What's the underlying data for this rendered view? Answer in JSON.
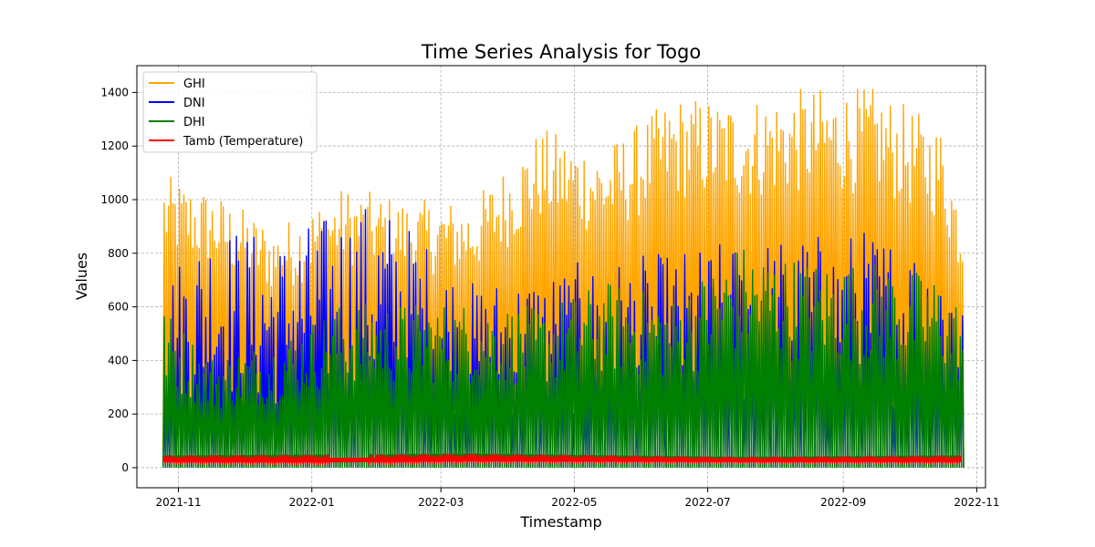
{
  "chart_data": {
    "type": "line",
    "title": "Time Series Analysis for Togo",
    "xlabel": "Timestamp",
    "ylabel": "Values",
    "x_tick_labels": [
      "2021-11",
      "2022-01",
      "2022-03",
      "2022-05",
      "2022-07",
      "2022-09",
      "2022-11"
    ],
    "xlim": [
      "2021-10-13",
      "2022-11-05"
    ],
    "data_range": [
      "2021-10-25",
      "2022-10-25"
    ],
    "ylim": [
      -75,
      1500
    ],
    "y_ticks": [
      0,
      200,
      400,
      600,
      800,
      1000,
      1200,
      1400
    ],
    "grid": true,
    "legend_position": "top-left",
    "series": [
      {
        "name": "GHI",
        "color": "#FFA500",
        "approx_daily_peak": [
          {
            "x": "2021-10-25",
            "y": 1095
          },
          {
            "x": "2021-11-15",
            "y": 1040
          },
          {
            "x": "2021-12-15",
            "y": 900
          },
          {
            "x": "2022-01-15",
            "y": 1050
          },
          {
            "x": "2022-02-15",
            "y": 1000
          },
          {
            "x": "2022-03-15",
            "y": 1000
          },
          {
            "x": "2022-04-15",
            "y": 1270
          },
          {
            "x": "2022-05-15",
            "y": 1200
          },
          {
            "x": "2022-06-15",
            "y": 1390
          },
          {
            "x": "2022-07-15",
            "y": 1380
          },
          {
            "x": "2022-08-15",
            "y": 1420
          },
          {
            "x": "2022-09-15",
            "y": 1420
          },
          {
            "x": "2022-10-15",
            "y": 1280
          },
          {
            "x": "2022-10-25",
            "y": 970
          }
        ]
      },
      {
        "name": "DNI",
        "color": "#0000FF",
        "approx_daily_peak": [
          {
            "x": "2021-10-25",
            "y": 730
          },
          {
            "x": "2021-11-15",
            "y": 940
          },
          {
            "x": "2021-12-15",
            "y": 860
          },
          {
            "x": "2022-01-15",
            "y": 980
          },
          {
            "x": "2022-02-01",
            "y": 1005
          },
          {
            "x": "2022-03-15",
            "y": 700
          },
          {
            "x": "2022-04-15",
            "y": 750
          },
          {
            "x": "2022-05-15",
            "y": 780
          },
          {
            "x": "2022-06-15",
            "y": 810
          },
          {
            "x": "2022-07-15",
            "y": 860
          },
          {
            "x": "2022-08-15",
            "y": 880
          },
          {
            "x": "2022-09-15",
            "y": 900
          },
          {
            "x": "2022-10-15",
            "y": 840
          },
          {
            "x": "2022-10-25",
            "y": 820
          }
        ]
      },
      {
        "name": "DHI",
        "color": "#008000",
        "approx_daily_peak": [
          {
            "x": "2021-10-25",
            "y": 600
          },
          {
            "x": "2021-11-15",
            "y": 420
          },
          {
            "x": "2021-12-15",
            "y": 480
          },
          {
            "x": "2022-01-15",
            "y": 620
          },
          {
            "x": "2022-02-15",
            "y": 620
          },
          {
            "x": "2022-03-15",
            "y": 620
          },
          {
            "x": "2022-04-15",
            "y": 600
          },
          {
            "x": "2022-05-15",
            "y": 700
          },
          {
            "x": "2022-06-15",
            "y": 640
          },
          {
            "x": "2022-07-15",
            "y": 840
          },
          {
            "x": "2022-08-15",
            "y": 780
          },
          {
            "x": "2022-09-15",
            "y": 770
          },
          {
            "x": "2022-10-15",
            "y": 720
          },
          {
            "x": "2022-10-25",
            "y": 600
          }
        ]
      },
      {
        "name": "Tamb (Temperature)",
        "color": "#FF0000",
        "approx_range": [
          {
            "x": "2021-10-25",
            "min": 22,
            "max": 35
          },
          {
            "x": "2022-01-15",
            "min": 20,
            "max": 36
          },
          {
            "x": "2022-03-15",
            "min": 25,
            "max": 40
          },
          {
            "x": "2022-07-15",
            "min": 22,
            "max": 32
          },
          {
            "x": "2022-10-25",
            "min": 22,
            "max": 35
          }
        ]
      }
    ]
  }
}
